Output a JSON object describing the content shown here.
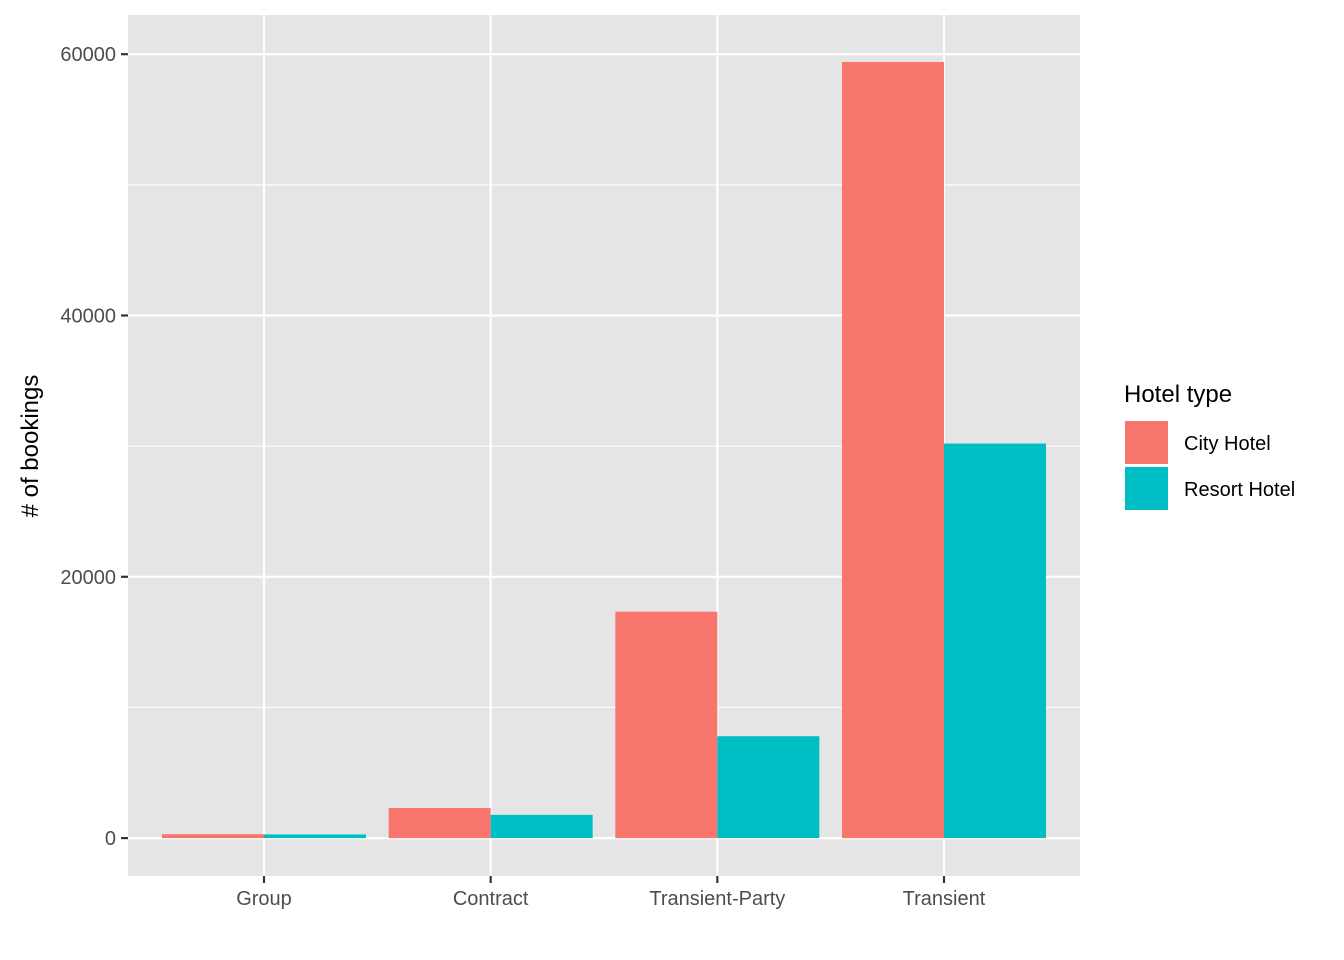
{
  "chart_data": {
    "type": "bar",
    "categories": [
      "Group",
      "Contract",
      "Transient-Party",
      "Transient"
    ],
    "series": [
      {
        "name": "City Hotel",
        "color": "#F8766D",
        "values": [
          300,
          2300,
          17330,
          59400
        ]
      },
      {
        "name": "Resort Hotel",
        "color": "#00BFC4",
        "values": [
          280,
          1780,
          7800,
          30200
        ]
      }
    ],
    "xlabel": "",
    "ylabel": "# of bookings",
    "ylim": [
      -2900,
      63000
    ],
    "yticks": [
      0,
      20000,
      40000,
      60000
    ],
    "ytick_labels": [
      "0",
      "20000",
      "40000",
      "60000"
    ],
    "grid": true,
    "legend": {
      "title": "Hotel type",
      "position": "right"
    },
    "colors": {
      "panel": "#E5E5E5",
      "grid": "#FFFFFF"
    }
  }
}
